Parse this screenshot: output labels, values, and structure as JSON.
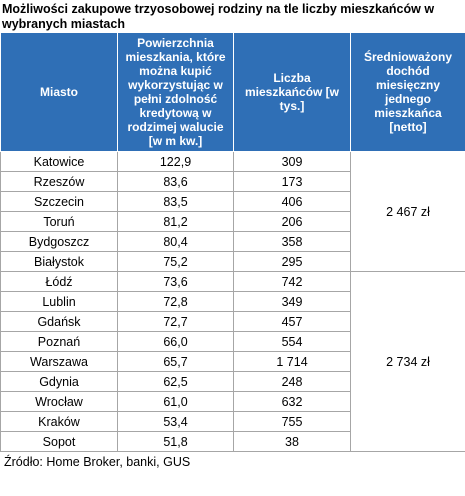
{
  "title": "Możliwości zakupowe trzyosobowej rodziny na tle liczby mieszkańców w wybranych miastach",
  "table": {
    "header": [
      "Miasto",
      "Powierzchnia mieszkania, które można kupić wykorzystując w pełni zdolność kredytową w rodzimej walucie [w m kw.]",
      "Liczba mieszkańców [w tys.]",
      "Średnioważony dochód miesięczny jednego mieszkańca [netto]"
    ],
    "groups": [
      {
        "income": "2 467 zł",
        "rows": [
          [
            "Katowice",
            "122,9",
            "309"
          ],
          [
            "Rzeszów",
            "83,6",
            "173"
          ],
          [
            "Szczecin",
            "83,5",
            "406"
          ],
          [
            "Toruń",
            "81,2",
            "206"
          ],
          [
            "Bydgoszcz",
            "80,4",
            "358"
          ],
          [
            "Białystok",
            "75,2",
            "295"
          ]
        ]
      },
      {
        "income": "2 734 zł",
        "rows": [
          [
            "Łódź",
            "73,6",
            "742"
          ],
          [
            "Lublin",
            "72,8",
            "349"
          ],
          [
            "Gdańsk",
            "72,7",
            "457"
          ],
          [
            "Poznań",
            "66,0",
            "554"
          ],
          [
            "Warszawa",
            "65,7",
            "1 714"
          ],
          [
            "Gdynia",
            "62,5",
            "248"
          ],
          [
            "Wrocław",
            "61,0",
            "632"
          ],
          [
            "Kraków",
            "53,4",
            "755"
          ],
          [
            "Sopot",
            "51,8",
            "38"
          ]
        ]
      }
    ]
  },
  "source": "Źródło: Home Broker, banki, GUS"
}
